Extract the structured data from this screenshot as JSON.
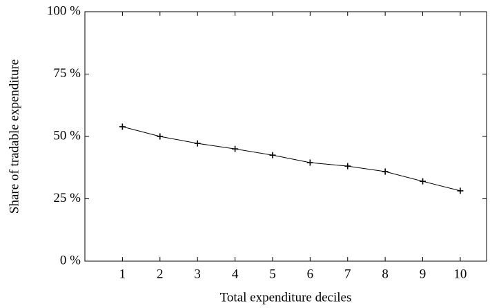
{
  "chart_data": {
    "type": "line",
    "x_label": "Total expenditure deciles",
    "y_label": "Share of tradable expenditure",
    "x": [
      1,
      2,
      3,
      4,
      5,
      6,
      7,
      8,
      9,
      10
    ],
    "series": [
      {
        "color": "#000000",
        "marker": "+",
        "values": [
          53.9,
          50.0,
          47.2,
          45.0,
          42.5,
          39.5,
          38.1,
          35.9,
          32.0,
          28.2
        ]
      }
    ],
    "xlim": [
      0,
      10.7
    ],
    "xticks": [
      1,
      2,
      3,
      4,
      5,
      6,
      7,
      8,
      9,
      10
    ],
    "ylim": [
      0,
      100
    ],
    "yticks": [
      {
        "value": 0,
        "label": "0 %"
      },
      {
        "value": 25,
        "label": "25 %"
      },
      {
        "value": 50,
        "label": "50 %"
      },
      {
        "value": 75,
        "label": "75 %"
      },
      {
        "value": 100,
        "label": "100 %"
      }
    ],
    "grid": false
  }
}
